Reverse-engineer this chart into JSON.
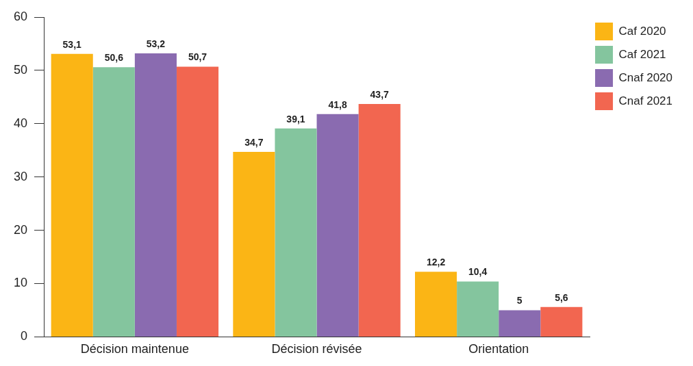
{
  "chart_data": {
    "type": "bar",
    "categories": [
      "Décision maintenue",
      "Décision révisée",
      "Orientation"
    ],
    "series": [
      {
        "name": "Caf 2020",
        "color": "#fbb515",
        "values": [
          53.1,
          34.7,
          12.2
        ],
        "value_labels": [
          "53,1",
          "34,7",
          "12,2"
        ]
      },
      {
        "name": "Caf 2021",
        "color": "#84c59e",
        "values": [
          50.6,
          39.1,
          10.4
        ],
        "value_labels": [
          "50,6",
          "39,1",
          "10,4"
        ]
      },
      {
        "name": "Cnaf 2020",
        "color": "#8a6bb0",
        "values": [
          53.2,
          41.8,
          5
        ],
        "value_labels": [
          "53,2",
          "41,8",
          "5"
        ]
      },
      {
        "name": "Cnaf 2021",
        "color": "#f26650",
        "values": [
          50.7,
          43.7,
          5.6
        ],
        "value_labels": [
          "50,7",
          "43,7",
          "5,6"
        ]
      }
    ],
    "ylim": [
      0,
      60
    ],
    "yticks": [
      0,
      10,
      20,
      30,
      40,
      50,
      60
    ],
    "grid": false,
    "legend": "top right"
  }
}
